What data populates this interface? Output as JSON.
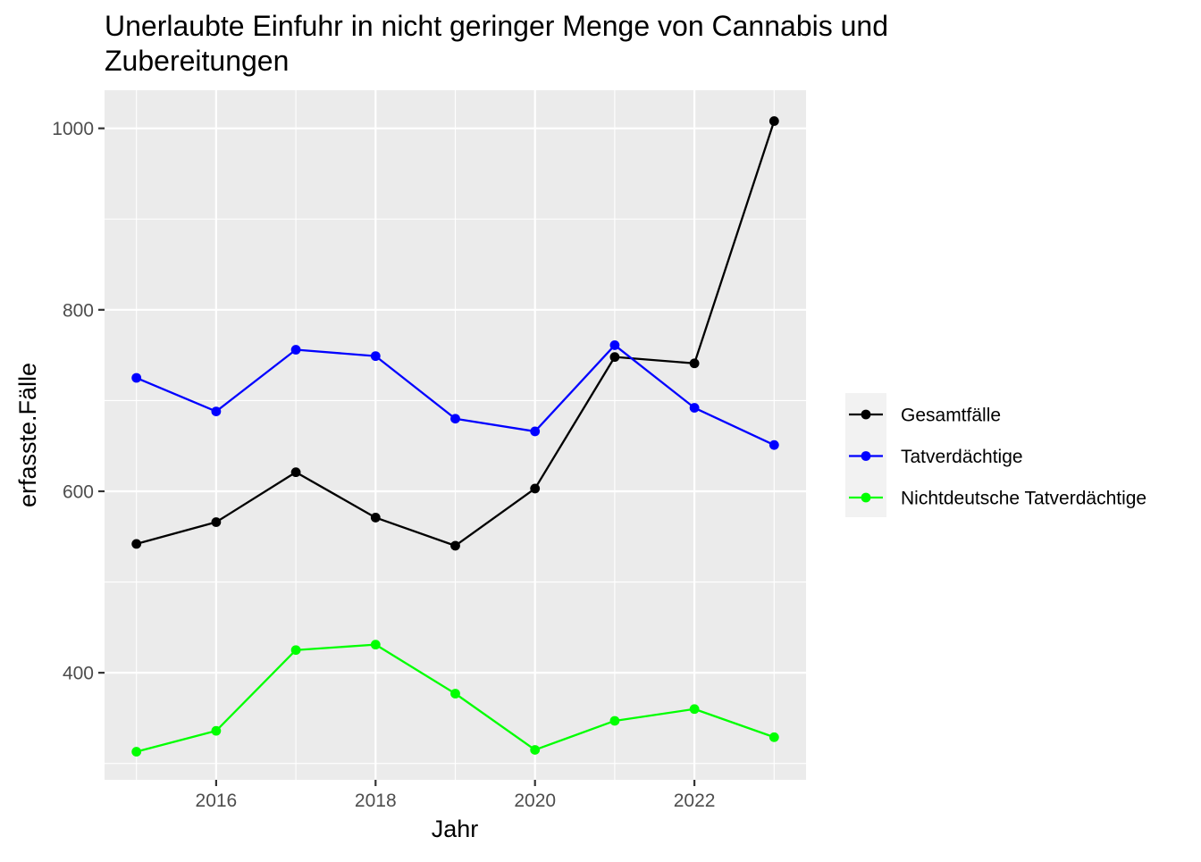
{
  "chart_data": {
    "type": "line",
    "title_lines": [
      "Unerlaubte Einfuhr in nicht geringer Menge von Cannabis und",
      "Zubereitungen"
    ],
    "xlabel": "Jahr",
    "ylabel": "erfasste.Fälle",
    "x": [
      2015,
      2016,
      2017,
      2018,
      2019,
      2020,
      2021,
      2022,
      2023
    ],
    "xlim": [
      2014.6,
      2023.4
    ],
    "ylim": [
      282,
      1042
    ],
    "x_ticks": [
      2016,
      2018,
      2020,
      2022
    ],
    "x_tick_labels": [
      "2016",
      "2018",
      "2020",
      "2022"
    ],
    "x_minor_ticks": [
      2015,
      2017,
      2019,
      2021,
      2023
    ],
    "y_ticks": [
      400,
      600,
      800,
      1000
    ],
    "y_tick_labels": [
      "400",
      "600",
      "800",
      "1000"
    ],
    "y_minor_ticks": [
      300,
      500,
      700,
      900
    ],
    "grid": true,
    "legend_position": "right",
    "series": [
      {
        "name": "Gesamtfälle",
        "color": "#000000",
        "values": [
          542,
          566,
          621,
          571,
          540,
          603,
          748,
          741,
          1008
        ]
      },
      {
        "name": "Tatverdächtige",
        "color": "#0000ff",
        "values": [
          725,
          688,
          756,
          749,
          680,
          666,
          761,
          692,
          651
        ]
      },
      {
        "name": "Nichtdeutsche Tatverdächtige",
        "color": "#00ff00",
        "values": [
          313,
          336,
          425,
          431,
          377,
          315,
          347,
          360,
          329
        ]
      }
    ]
  }
}
